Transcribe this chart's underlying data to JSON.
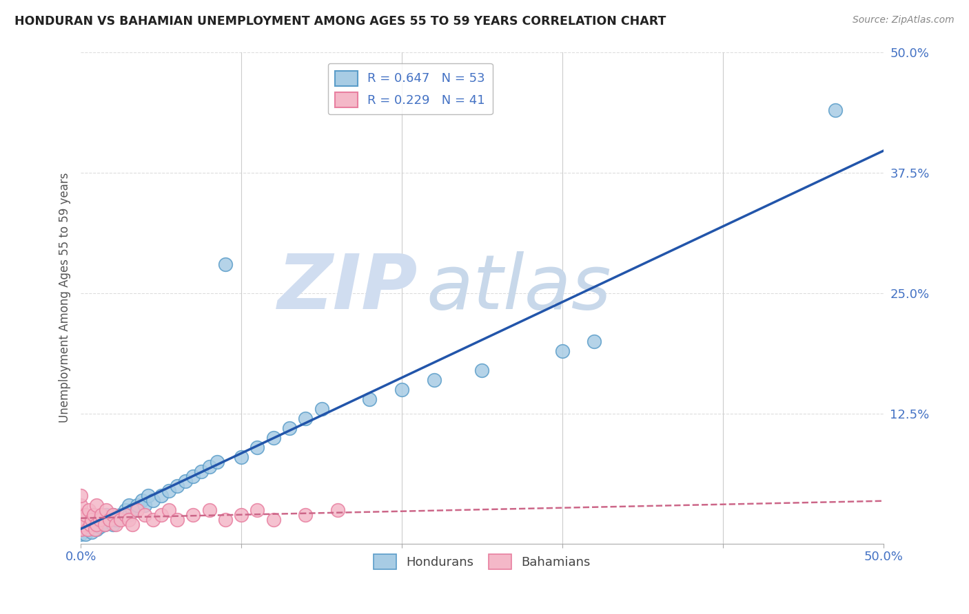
{
  "title": "HONDURAN VS BAHAMIAN UNEMPLOYMENT AMONG AGES 55 TO 59 YEARS CORRELATION CHART",
  "source": "Source: ZipAtlas.com",
  "ylabel": "Unemployment Among Ages 55 to 59 years",
  "xlim": [
    0.0,
    0.5
  ],
  "ylim": [
    -0.01,
    0.5
  ],
  "honduran_R": 0.647,
  "honduran_N": 53,
  "bahamian_R": 0.229,
  "bahamian_N": 41,
  "honduran_color": "#a8cce4",
  "honduran_edge_color": "#5b9dc9",
  "bahamian_color": "#f4b8c8",
  "bahamian_edge_color": "#e87fa0",
  "honduran_line_color": "#2255aa",
  "bahamian_line_color": "#cc6688",
  "grid_color": "#dddddd",
  "tick_color": "#4472c4",
  "background_color": "#ffffff",
  "legend_label_hondurans": "Hondurans",
  "legend_label_bahamians": "Bahamians",
  "watermark_zip_color": "#d0dff0",
  "watermark_atlas_color": "#c8d8e8",
  "honduran_x": [
    0.0,
    0.0,
    0.0,
    0.0,
    0.002,
    0.003,
    0.004,
    0.005,
    0.006,
    0.007,
    0.008,
    0.01,
    0.01,
    0.012,
    0.013,
    0.015,
    0.016,
    0.018,
    0.02,
    0.02,
    0.022,
    0.025,
    0.028,
    0.03,
    0.03,
    0.032,
    0.035,
    0.038,
    0.04,
    0.042,
    0.045,
    0.05,
    0.055,
    0.06,
    0.065,
    0.07,
    0.075,
    0.08,
    0.085,
    0.09,
    0.1,
    0.11,
    0.12,
    0.13,
    0.14,
    0.15,
    0.18,
    0.2,
    0.22,
    0.25,
    0.3,
    0.32,
    0.47
  ],
  "honduran_y": [
    0.0,
    0.005,
    0.01,
    0.015,
    0.005,
    0.0,
    0.01,
    0.005,
    0.008,
    0.002,
    0.01,
    0.005,
    0.015,
    0.008,
    0.012,
    0.01,
    0.02,
    0.015,
    0.01,
    0.02,
    0.015,
    0.02,
    0.025,
    0.02,
    0.03,
    0.025,
    0.03,
    0.035,
    0.03,
    0.04,
    0.035,
    0.04,
    0.045,
    0.05,
    0.055,
    0.06,
    0.065,
    0.07,
    0.075,
    0.28,
    0.08,
    0.09,
    0.1,
    0.11,
    0.12,
    0.13,
    0.14,
    0.15,
    0.16,
    0.17,
    0.19,
    0.2,
    0.44
  ],
  "bahamian_x": [
    0.0,
    0.0,
    0.0,
    0.0,
    0.0,
    0.001,
    0.002,
    0.003,
    0.004,
    0.005,
    0.006,
    0.007,
    0.008,
    0.009,
    0.01,
    0.01,
    0.012,
    0.013,
    0.015,
    0.016,
    0.018,
    0.02,
    0.022,
    0.025,
    0.028,
    0.03,
    0.032,
    0.035,
    0.04,
    0.045,
    0.05,
    0.055,
    0.06,
    0.07,
    0.08,
    0.09,
    0.1,
    0.11,
    0.12,
    0.14,
    0.16
  ],
  "bahamian_y": [
    0.005,
    0.01,
    0.02,
    0.03,
    0.04,
    0.015,
    0.01,
    0.02,
    0.005,
    0.025,
    0.01,
    0.015,
    0.02,
    0.005,
    0.01,
    0.03,
    0.015,
    0.02,
    0.01,
    0.025,
    0.015,
    0.02,
    0.01,
    0.015,
    0.02,
    0.015,
    0.01,
    0.025,
    0.02,
    0.015,
    0.02,
    0.025,
    0.015,
    0.02,
    0.025,
    0.015,
    0.02,
    0.025,
    0.015,
    0.02,
    0.025
  ]
}
